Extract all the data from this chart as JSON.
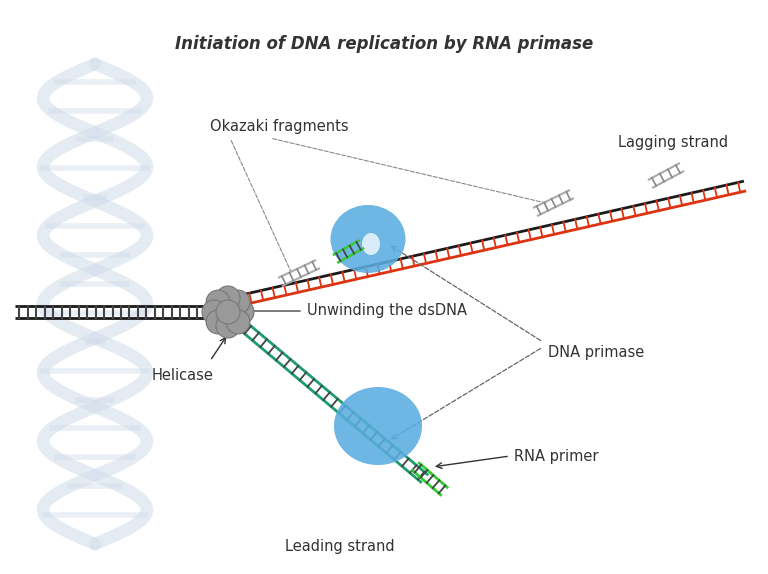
{
  "title": "Initiation of DNA replication by RNA primase",
  "labels": {
    "leading_strand": "Leading strand",
    "rna_primer": "RNA primer",
    "helicase": "Helicase",
    "unwinding": "Unwinding the dsDNA",
    "dna_primase": "DNA primase",
    "okazaki": "Okazaki fragments",
    "lagging_strand": "Lagging strand"
  },
  "colors": {
    "dna_backbone_dark": "#1a1a1a",
    "dna_rung": "#444444",
    "leading_backbone": "#1a9e6e",
    "leading_rung": "#1a9e6e",
    "lagging_backbone": "#dd3311",
    "lagging_rung": "#dd3311",
    "rna_green": "#33cc33",
    "blob_blue": "#5aace0",
    "helicase_gray": "#999999",
    "helicase_edge": "#777777",
    "annot": "#333333",
    "watermark": "#d0dcea"
  },
  "layout": {
    "fig_w": 7.68,
    "fig_h": 5.74,
    "dpi": 100,
    "xlim": [
      0,
      768
    ],
    "ylim": [
      0,
      574
    ]
  }
}
